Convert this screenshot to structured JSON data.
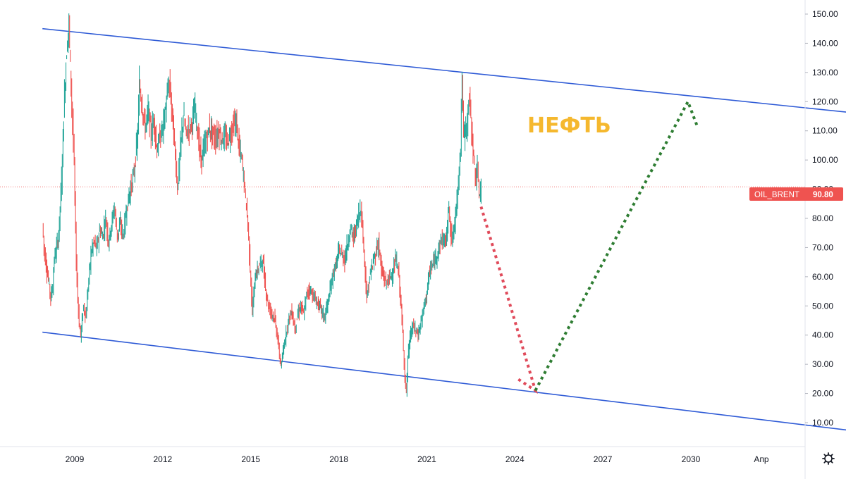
{
  "chart_data": {
    "type": "line",
    "symbol": "OIL_BRENT",
    "last_price": "90.80",
    "annotation": "НЕФТЬ",
    "ylim": [
      8,
      152
    ],
    "y_ticks": [
      "10.00",
      "20.00",
      "30.00",
      "40.00",
      "50.00",
      "60.00",
      "70.00",
      "80.00",
      "90.00",
      "100.00",
      "110.00",
      "120.00",
      "130.00",
      "140.00",
      "150.00"
    ],
    "x_ticks": [
      "2009",
      "2012",
      "2015",
      "2018",
      "2021",
      "2024",
      "2027",
      "2030",
      "Апр"
    ],
    "series": [
      {
        "values": [
          [
            2007.9,
            78
          ],
          [
            2007.95,
            70
          ],
          [
            2008.05,
            62
          ],
          [
            2008.1,
            59
          ],
          [
            2008.18,
            53
          ],
          [
            2008.25,
            57
          ],
          [
            2008.3,
            66
          ],
          [
            2008.38,
            70
          ],
          [
            2008.45,
            74
          ],
          [
            2008.5,
            84
          ],
          [
            2008.55,
            93
          ],
          [
            2008.6,
            108
          ],
          [
            2008.65,
            122
          ],
          [
            2008.7,
            133
          ],
          [
            2008.75,
            141
          ],
          [
            2008.8,
            147
          ],
          [
            2008.85,
            132
          ],
          [
            2008.92,
            113
          ],
          [
            2008.98,
            98
          ],
          [
            2009.05,
            65
          ],
          [
            2009.1,
            53
          ],
          [
            2009.15,
            44
          ],
          [
            2009.2,
            40
          ],
          [
            2009.25,
            45
          ],
          [
            2009.3,
            50
          ],
          [
            2009.38,
            46
          ],
          [
            2009.45,
            56
          ],
          [
            2009.55,
            68
          ],
          [
            2009.65,
            72
          ],
          [
            2009.75,
            70
          ],
          [
            2009.85,
            76
          ],
          [
            2009.95,
            74
          ],
          [
            2010.05,
            80
          ],
          [
            2010.15,
            72
          ],
          [
            2010.25,
            78
          ],
          [
            2010.35,
            84
          ],
          [
            2010.45,
            74
          ],
          [
            2010.55,
            78
          ],
          [
            2010.65,
            74
          ],
          [
            2010.75,
            82
          ],
          [
            2010.85,
            88
          ],
          [
            2010.95,
            92
          ],
          [
            2011.05,
            98
          ],
          [
            2011.15,
            110
          ],
          [
            2011.2,
            126
          ],
          [
            2011.3,
            118
          ],
          [
            2011.4,
            111
          ],
          [
            2011.5,
            117
          ],
          [
            2011.6,
            109
          ],
          [
            2011.7,
            114
          ],
          [
            2011.8,
            103
          ],
          [
            2011.9,
            108
          ],
          [
            2012.0,
            111
          ],
          [
            2012.1,
            118
          ],
          [
            2012.2,
            126
          ],
          [
            2012.25,
            124
          ],
          [
            2012.35,
            112
          ],
          [
            2012.45,
            98
          ],
          [
            2012.5,
            90
          ],
          [
            2012.6,
            104
          ],
          [
            2012.7,
            115
          ],
          [
            2012.8,
            109
          ],
          [
            2012.9,
            111
          ],
          [
            2013.0,
            113
          ],
          [
            2013.1,
            118
          ],
          [
            2013.2,
            108
          ],
          [
            2013.3,
            100
          ],
          [
            2013.4,
            104
          ],
          [
            2013.5,
            108
          ],
          [
            2013.6,
            111
          ],
          [
            2013.7,
            109
          ],
          [
            2013.8,
            107
          ],
          [
            2013.9,
            110
          ],
          [
            2014.0,
            107
          ],
          [
            2014.1,
            108
          ],
          [
            2014.2,
            106
          ],
          [
            2014.3,
            109
          ],
          [
            2014.4,
            112
          ],
          [
            2014.5,
            113
          ],
          [
            2014.6,
            104
          ],
          [
            2014.7,
            100
          ],
          [
            2014.8,
            90
          ],
          [
            2014.9,
            78
          ],
          [
            2015.0,
            58
          ],
          [
            2015.05,
            48
          ],
          [
            2015.15,
            60
          ],
          [
            2015.3,
            64
          ],
          [
            2015.4,
            66
          ],
          [
            2015.5,
            56
          ],
          [
            2015.6,
            50
          ],
          [
            2015.7,
            48
          ],
          [
            2015.8,
            46
          ],
          [
            2015.9,
            40
          ],
          [
            2016.0,
            31
          ],
          [
            2016.05,
            30
          ],
          [
            2016.15,
            38
          ],
          [
            2016.3,
            46
          ],
          [
            2016.4,
            48
          ],
          [
            2016.5,
            42
          ],
          [
            2016.6,
            47
          ],
          [
            2016.7,
            50
          ],
          [
            2016.8,
            47
          ],
          [
            2016.9,
            54
          ],
          [
            2017.0,
            56
          ],
          [
            2017.2,
            52
          ],
          [
            2017.4,
            49
          ],
          [
            2017.5,
            46
          ],
          [
            2017.6,
            50
          ],
          [
            2017.7,
            55
          ],
          [
            2017.8,
            61
          ],
          [
            2017.9,
            64
          ],
          [
            2018.0,
            69
          ],
          [
            2018.2,
            66
          ],
          [
            2018.4,
            77
          ],
          [
            2018.5,
            73
          ],
          [
            2018.6,
            78
          ],
          [
            2018.75,
            84
          ],
          [
            2018.85,
            70
          ],
          [
            2018.95,
            52
          ],
          [
            2019.05,
            60
          ],
          [
            2019.2,
            66
          ],
          [
            2019.35,
            72
          ],
          [
            2019.45,
            62
          ],
          [
            2019.6,
            58
          ],
          [
            2019.7,
            59
          ],
          [
            2019.85,
            62
          ],
          [
            2019.95,
            66
          ],
          [
            2020.05,
            60
          ],
          [
            2020.15,
            45
          ],
          [
            2020.25,
            26
          ],
          [
            2020.3,
            20
          ],
          [
            2020.35,
            32
          ],
          [
            2020.45,
            41
          ],
          [
            2020.55,
            43
          ],
          [
            2020.7,
            40
          ],
          [
            2020.85,
            47
          ],
          [
            2021.0,
            55
          ],
          [
            2021.1,
            62
          ],
          [
            2021.2,
            64
          ],
          [
            2021.35,
            68
          ],
          [
            2021.5,
            73
          ],
          [
            2021.65,
            72
          ],
          [
            2021.75,
            84
          ],
          [
            2021.85,
            72
          ],
          [
            2021.95,
            78
          ],
          [
            2022.05,
            90
          ],
          [
            2022.15,
            105
          ],
          [
            2022.2,
            128
          ],
          [
            2022.25,
            108
          ],
          [
            2022.35,
            112
          ],
          [
            2022.45,
            121
          ],
          [
            2022.5,
            114
          ],
          [
            2022.6,
            100
          ],
          [
            2022.65,
            94
          ],
          [
            2022.72,
            96
          ],
          [
            2022.78,
            88
          ],
          [
            2022.85,
            90.8
          ]
        ]
      }
    ],
    "channel": {
      "upper": [
        [
          2007.9,
          145
        ],
        [
          2035.7,
          116
        ]
      ],
      "lower": [
        [
          2007.9,
          41
        ],
        [
          2035.7,
          7
        ]
      ]
    },
    "forecast": {
      "down": [
        [
          2022.85,
          84
        ],
        [
          2024.7,
          21
        ],
        [
          2024.1,
          25
        ]
      ],
      "up": [
        [
          2024.7,
          21
        ],
        [
          2029.9,
          120
        ],
        [
          2030.2,
          112
        ]
      ]
    },
    "colors": {
      "price_up": "#26a69a",
      "price_down": "#ef5350",
      "channel": "#2f5bd6",
      "forecast_down": "#e04a5a",
      "forecast_up": "#2e7d32",
      "annotation": "#f5b82e",
      "price_tag": "#ef5350"
    },
    "grid": false,
    "icons": [
      "settings-gear-icon"
    ]
  }
}
